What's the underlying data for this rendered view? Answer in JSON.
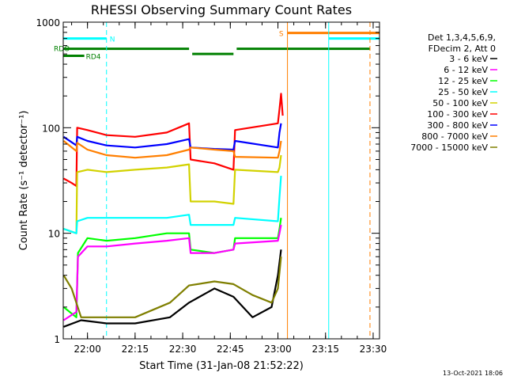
{
  "chart_data": {
    "type": "line",
    "title": "RHESSI Observing Summary Count Rates",
    "xlabel": "Start Time (31-Jan-08 21:52:22)",
    "ylabel": "Count Rate (s⁻¹ detector⁻¹)",
    "yscale": "log",
    "ylim": [
      1,
      1000
    ],
    "xlim": [
      "21:52:22",
      "23:32:00"
    ],
    "x_ticks": [
      "22:00",
      "22:15",
      "22:30",
      "22:45",
      "23:00",
      "23:15",
      "23:30"
    ],
    "y_ticks": [
      "1",
      "10",
      "100",
      "1000"
    ],
    "footer_date": "13-Oct-2021 18:06",
    "legend": {
      "placement": "right",
      "header": [
        "Det 1,3,4,5,6,9,",
        "FDecim 2, Att 0"
      ],
      "entries": [
        {
          "label": "3 - 6 keV",
          "color": "#000000"
        },
        {
          "label": "6 - 12 keV",
          "color": "#ff00ff"
        },
        {
          "label": "12 - 25 keV",
          "color": "#00ff00"
        },
        {
          "label": "25 - 50 keV",
          "color": "#00ffff"
        },
        {
          "label": "50 - 100 keV",
          "color": "#d2d200"
        },
        {
          "label": "100 - 300 keV",
          "color": "#ff0000"
        },
        {
          "label": "300 - 800 keV",
          "color": "#0000ff"
        },
        {
          "label": "800 - 7000 keV",
          "color": "#ff7f00"
        },
        {
          "label": "7000 - 15000 keV",
          "color": "#7f7f00"
        }
      ]
    },
    "flags": [
      {
        "label": "N",
        "color": "#00ffff",
        "start": "21:52:22",
        "end": "22:06:00",
        "level": 700
      },
      {
        "label": "RDO",
        "color": "#008000",
        "start": "21:52:22",
        "end": "23:29:00",
        "level": 560
      },
      {
        "label": "RD4",
        "color": "#008000",
        "start": "21:52:22",
        "end": "21:59:00",
        "level": 480
      },
      {
        "label": "S",
        "color": "#ff7f00",
        "start": "23:03:00",
        "end": "23:32:00",
        "level": 790
      }
    ],
    "flag_gaps": [
      [
        "22:32:00",
        "22:33:00"
      ],
      [
        "22:46:00",
        "22:47:00"
      ]
    ],
    "flag_dip": {
      "start": "22:33:00",
      "end": "22:46:00",
      "level": 500
    },
    "vlines": [
      {
        "time": "22:06:00",
        "color": "#00ffff",
        "dashed": true
      },
      {
        "time": "23:03:00",
        "color": "#ff7f00",
        "dashed": false
      },
      {
        "time": "23:16:00",
        "color": "#00ffff",
        "dashed": false
      },
      {
        "time": "23:29:00",
        "color": "#ff7f00",
        "dashed": true
      },
      {
        "time": "21:52:22",
        "color": "#00ffff",
        "dashed": false
      }
    ],
    "series": [
      {
        "name": "100 - 300 keV",
        "color": "#ff0000",
        "x": [
          "21:52:30",
          "21:55:00",
          "21:56:30",
          "21:56:45",
          "22:00:00",
          "22:06:00",
          "22:15:00",
          "22:25:00",
          "22:32:00",
          "22:32:30",
          "22:40:00",
          "22:46:00",
          "22:46:30",
          "23:00:00",
          "23:00:30",
          "23:01:00",
          "23:01:30"
        ],
        "y": [
          33,
          30,
          28,
          100,
          95,
          85,
          82,
          90,
          110,
          50,
          46,
          40,
          95,
          110,
          150,
          210,
          130
        ]
      },
      {
        "name": "300 - 800 keV",
        "color": "#0000ff",
        "x": [
          "21:52:30",
          "21:56:30",
          "21:56:45",
          "22:00:00",
          "22:06:00",
          "22:15:00",
          "22:25:00",
          "22:32:00",
          "22:32:30",
          "22:40:00",
          "22:46:00",
          "22:46:30",
          "23:00:00",
          "23:00:30",
          "23:01:00"
        ],
        "y": [
          82,
          68,
          82,
          75,
          68,
          65,
          70,
          78,
          65,
          63,
          62,
          75,
          65,
          90,
          110
        ]
      },
      {
        "name": "800 - 7000 keV",
        "color": "#ff7f00",
        "x": [
          "21:52:30",
          "21:56:30",
          "21:56:45",
          "22:00:00",
          "22:06:00",
          "22:15:00",
          "22:25:00",
          "22:32:00",
          "22:32:30",
          "22:40:00",
          "22:46:00",
          "22:46:30",
          "23:00:00",
          "23:00:30",
          "23:01:00"
        ],
        "y": [
          75,
          60,
          72,
          62,
          55,
          52,
          55,
          62,
          65,
          62,
          60,
          53,
          52,
          60,
          75
        ]
      },
      {
        "name": "50 - 100 keV",
        "color": "#d2d200",
        "x": [
          "21:52:30",
          "21:56:30",
          "21:56:45",
          "22:00:00",
          "22:06:00",
          "22:15:00",
          "22:25:00",
          "22:32:00",
          "22:32:30",
          "22:40:00",
          "22:46:00",
          "22:46:30",
          "23:00:00",
          "23:00:30",
          "23:01:00"
        ],
        "y": [
          11,
          10,
          38,
          40,
          38,
          40,
          42,
          45,
          20,
          20,
          19,
          40,
          38,
          42,
          55
        ]
      },
      {
        "name": "25 - 50 keV",
        "color": "#00ffff",
        "x": [
          "21:52:30",
          "21:56:30",
          "21:56:45",
          "22:00:00",
          "22:06:00",
          "22:15:00",
          "22:25:00",
          "22:32:00",
          "22:32:30",
          "22:40:00",
          "22:46:00",
          "22:46:30",
          "23:00:00",
          "23:00:30",
          "23:01:00"
        ],
        "y": [
          11,
          10,
          13,
          14,
          14,
          14,
          14,
          15,
          12,
          12,
          12,
          14,
          13,
          22,
          35
        ]
      },
      {
        "name": "12 - 25 keV",
        "color": "#00ff00",
        "x": [
          "21:52:30",
          "21:56:30",
          "21:57:00",
          "22:00:00",
          "22:06:00",
          "22:15:00",
          "22:25:00",
          "22:32:00",
          "22:32:30",
          "22:40:00",
          "22:46:00",
          "22:46:30",
          "23:00:00",
          "23:00:30",
          "23:01:00"
        ],
        "y": [
          2.0,
          1.6,
          6.5,
          9,
          8.5,
          9,
          10,
          10,
          7,
          6.5,
          7,
          9,
          9,
          11,
          14
        ]
      },
      {
        "name": "6 - 12 keV",
        "color": "#ff00ff",
        "x": [
          "21:52:30",
          "21:56:30",
          "21:57:00",
          "22:00:00",
          "22:06:00",
          "22:15:00",
          "22:25:00",
          "22:32:00",
          "22:32:30",
          "22:40:00",
          "22:46:00",
          "22:46:30",
          "23:00:00",
          "23:00:30",
          "23:01:00"
        ],
        "y": [
          1.5,
          1.8,
          6,
          7.5,
          7.5,
          8,
          8.5,
          9,
          6.5,
          6.5,
          7,
          8,
          8.5,
          10,
          12
        ]
      },
      {
        "name": "3 - 6 keV",
        "color": "#000000",
        "x": [
          "21:52:30",
          "21:58:00",
          "22:06:00",
          "22:15:00",
          "22:26:00",
          "22:32:00",
          "22:40:00",
          "22:46:00",
          "22:52:00",
          "22:58:00",
          "23:00:00",
          "23:01:00"
        ],
        "y": [
          1.3,
          1.5,
          1.4,
          1.4,
          1.6,
          2.2,
          3,
          2.5,
          1.6,
          2,
          4,
          7
        ]
      },
      {
        "name": "7000 - 15000 keV",
        "color": "#7f7f00",
        "x": [
          "21:52:30",
          "21:55:00",
          "21:58:00",
          "22:06:00",
          "22:15:00",
          "22:26:00",
          "22:32:00",
          "22:40:00",
          "22:46:00",
          "22:52:00",
          "22:58:00",
          "23:00:00",
          "23:01:00"
        ],
        "y": [
          4,
          3,
          1.6,
          1.6,
          1.6,
          2.2,
          3.2,
          3.5,
          3.3,
          2.6,
          2.2,
          3,
          6
        ]
      }
    ]
  }
}
